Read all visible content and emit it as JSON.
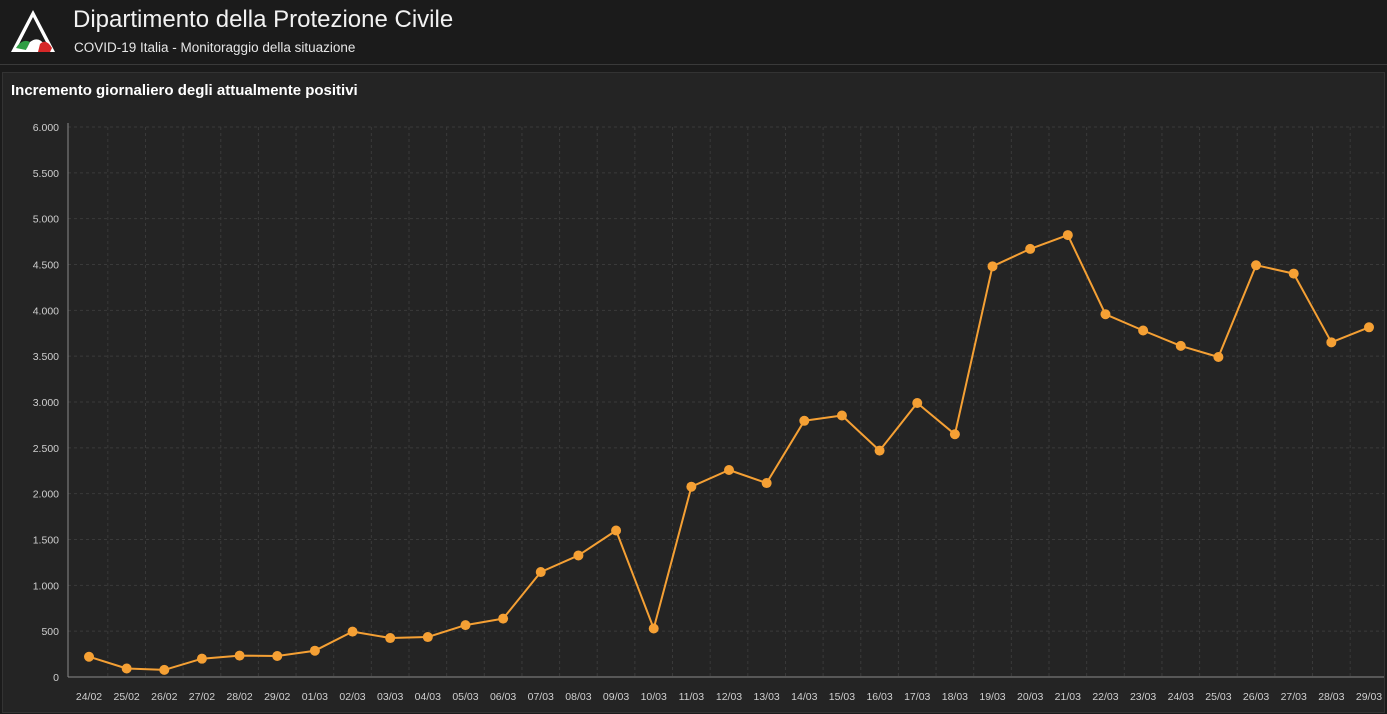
{
  "header": {
    "title": "Dipartimento della Protezione Civile",
    "subtitle": "COVID-19 Italia - Monitoraggio della situazione",
    "logo_icon": "civil-protection-logo-icon"
  },
  "panel": {
    "title": "Incremento giornaliero degli attualmente positivi"
  },
  "colors": {
    "background": "#1b1b1b",
    "panel": "#242424",
    "grid": "#3a3a3a",
    "series": "#f5a034",
    "text": "#cfcfcf"
  },
  "chart_data": {
    "type": "line",
    "title": "Incremento giornaliero degli attualmente positivi",
    "xlabel": "",
    "ylabel": "",
    "ylim": [
      0,
      6000
    ],
    "yticks": [
      0,
      500,
      1000,
      1500,
      2000,
      2500,
      3000,
      3500,
      4000,
      4500,
      5000,
      5500,
      6000
    ],
    "ytick_labels": [
      "0",
      "500",
      "1.000",
      "1.500",
      "2.000",
      "2.500",
      "3.000",
      "3.500",
      "4.000",
      "4.500",
      "5.000",
      "5.500",
      "6.000"
    ],
    "grid": true,
    "categories": [
      "24/02",
      "25/02",
      "26/02",
      "27/02",
      "28/02",
      "29/02",
      "01/03",
      "02/03",
      "03/03",
      "04/03",
      "05/03",
      "06/03",
      "07/03",
      "08/03",
      "09/03",
      "10/03",
      "11/03",
      "12/03",
      "13/03",
      "14/03",
      "15/03",
      "16/03",
      "17/03",
      "18/03",
      "19/03",
      "20/03",
      "21/03",
      "22/03",
      "23/03",
      "24/03",
      "25/03",
      "26/03",
      "27/03",
      "28/03",
      "29/03"
    ],
    "series": [
      {
        "values": [
          221,
          93,
          78,
          200,
          233,
          229,
          287,
          495,
          425,
          436,
          566,
          637,
          1145,
          1326,
          1598,
          529,
          2076,
          2258,
          2116,
          2795,
          2853,
          2470,
          2989,
          2648,
          4480,
          4670,
          4821,
          3957,
          3780,
          3612,
          3491,
          4492,
          4401,
          3651,
          3815
        ]
      }
    ]
  }
}
